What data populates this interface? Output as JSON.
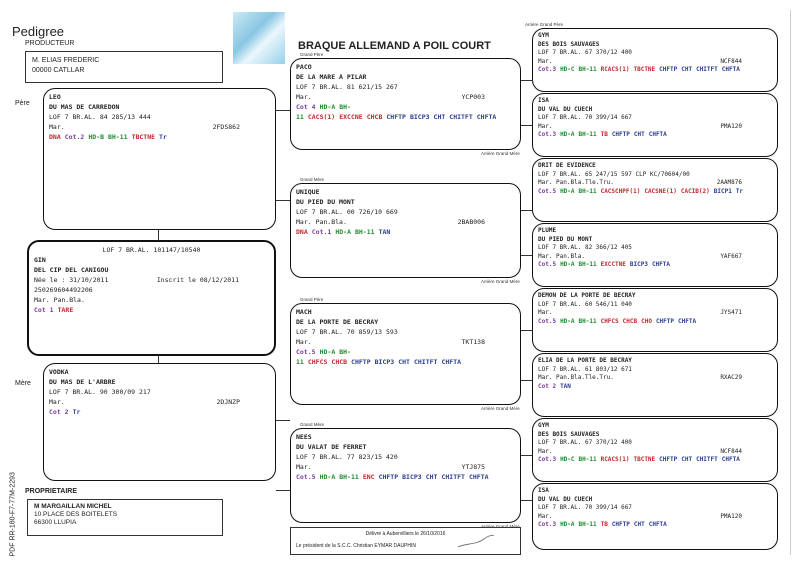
{
  "header": {
    "title": "Pedigree",
    "breed": "BRAQUE ALLEMAND A POIL COURT"
  },
  "breeder": {
    "label": "PRODUCTEUR",
    "name": "M. ELIAS FREDERIC",
    "city": "00000 CATLLAR"
  },
  "owner": {
    "label": "PROPRIETAIRE",
    "name": "M MARGAILLAN MICHEL",
    "address": "10 PLACE DES BOITELETS",
    "city": "66300 LLUPIA"
  },
  "side_code": "PDF   RR-180-F7-77M-2293",
  "labels": {
    "pere": "Père",
    "mere": "Mère",
    "grand_pere": "Grand Père",
    "grand_mere": "Grand Mère",
    "arriere_grand_pere": "Arrière Grand Père",
    "arriere_grand_mere": "Arrière Grand Mère"
  },
  "colors": {
    "purple": "#7a3d9a",
    "green": "#1f8a2e",
    "red": "#c0262b",
    "blue": "#2a3b8f"
  },
  "subject": {
    "lof": "LOF 7 BR.AL. 101147/10540",
    "name": "GIN",
    "affix": "DEL CIP DEL CANIGOU",
    "born": "Née le : 31/10/2011",
    "registered": "Inscrit le 08/12/2011",
    "chip": "250269604492206",
    "coat": "Mar. Pan.Bla.",
    "tags": [
      {
        "t": "Cot 1",
        "c": "purple"
      },
      {
        "t": "TARE",
        "c": "red"
      }
    ]
  },
  "dogs": [
    {
      "role": "pere",
      "name": "LEO",
      "affix": "DU MAS DE CARREDON",
      "lof": "LOF 7 BR.AL. 84 285/13 444",
      "coat": "Mar.",
      "id": "2FDS862",
      "tags": [
        {
          "t": "DNA",
          "c": "red"
        },
        {
          "t": "Cot.2",
          "c": "purple"
        },
        {
          "t": "HD-B",
          "c": "green"
        },
        {
          "t": "BH-11",
          "c": "green"
        },
        {
          "t": "TBCTNE",
          "c": "red"
        },
        {
          "t": "Tr",
          "c": "blue"
        }
      ]
    },
    {
      "role": "mere",
      "name": "VODKA",
      "affix": "DU MAS DE L'ARBRE",
      "lof": "LOF 7 BR.AL. 90 300/09 217",
      "coat": "Mar.",
      "id": "2DJNZP",
      "tags": [
        {
          "t": "Cot 2",
          "c": "purple"
        },
        {
          "t": "Tr",
          "c": "blue"
        }
      ]
    },
    {
      "role": "gp1",
      "name": "PACO",
      "affix": "DE LA MARE A PILAR",
      "lof": "LOF 7 BR.AL. 81 621/15 267",
      "coat": "Mar.",
      "id": "YCP003",
      "tags": [
        {
          "t": "Cot 4",
          "c": "purple"
        },
        {
          "t": "HD-A",
          "c": "green"
        },
        {
          "t": "BH-11",
          "c": "green"
        },
        {
          "t": "CACS(1)",
          "c": "red"
        },
        {
          "t": "EXCCNE",
          "c": "red"
        },
        {
          "t": "CHCB",
          "c": "red"
        },
        {
          "t": "CHFTP",
          "c": "blue"
        },
        {
          "t": "BICP3",
          "c": "blue"
        },
        {
          "t": "CHT",
          "c": "blue"
        },
        {
          "t": "CHITFT",
          "c": "blue"
        },
        {
          "t": "CHFTA",
          "c": "blue"
        }
      ]
    },
    {
      "role": "gm1",
      "name": "UNIQUE",
      "affix": "DU PIED DU MONT",
      "lof": "LOF 7 BR.AL. 00 726/10 669",
      "coat": "Mar. Pan.Bla.",
      "id": "2BAB006",
      "tags": [
        {
          "t": "DNA",
          "c": "red"
        },
        {
          "t": "Cot.1",
          "c": "purple"
        },
        {
          "t": "HD-A",
          "c": "green"
        },
        {
          "t": "BH-11",
          "c": "green"
        },
        {
          "t": "TAN",
          "c": "blue"
        }
      ]
    },
    {
      "role": "gp2",
      "name": "MACH",
      "affix": "DE LA PORTE DE BECRAY",
      "lof": "LOF 7 BR.AL. 70 859/13 593",
      "coat": "Mar.",
      "id": "TKT138",
      "tags": [
        {
          "t": "Cot.5",
          "c": "purple"
        },
        {
          "t": "HD-A",
          "c": "green"
        },
        {
          "t": "BH-11",
          "c": "green"
        },
        {
          "t": "CHFCS",
          "c": "red"
        },
        {
          "t": "CHCB",
          "c": "red"
        },
        {
          "t": "CHFTP",
          "c": "blue"
        },
        {
          "t": "BICP3",
          "c": "blue"
        },
        {
          "t": "CHT",
          "c": "blue"
        },
        {
          "t": "CHITFT",
          "c": "blue"
        },
        {
          "t": "CHFTA",
          "c": "blue"
        }
      ]
    },
    {
      "role": "gm2",
      "name": "NEES",
      "affix": "DU VALAT DE FERRET",
      "lof": "LOF 7 BR.AL. 77 823/15 420",
      "coat": "Mar.",
      "id": "YTJ875",
      "tags": [
        {
          "t": "Cot.5",
          "c": "purple"
        },
        {
          "t": "HD-A",
          "c": "green"
        },
        {
          "t": "BH-11",
          "c": "green"
        },
        {
          "t": "ENC",
          "c": "red"
        },
        {
          "t": "CHFTP",
          "c": "blue"
        },
        {
          "t": "BICP3",
          "c": "blue"
        },
        {
          "t": "CHT",
          "c": "blue"
        },
        {
          "t": "CHITFT",
          "c": "blue"
        },
        {
          "t": "CHFTA",
          "c": "blue"
        }
      ]
    },
    {
      "role": "agp1",
      "name": "GYM",
      "affix": "DES BOIS SAUVAGES",
      "lof": "LOF 7 BR.AL. 67 370/12 400",
      "coat": "Mar.",
      "id": "NCF844",
      "tags": [
        {
          "t": "Cot.3",
          "c": "purple"
        },
        {
          "t": "HD-C",
          "c": "green"
        },
        {
          "t": "BH-11",
          "c": "green"
        },
        {
          "t": "RCACS(1)",
          "c": "red"
        },
        {
          "t": "TBCTNE",
          "c": "red"
        },
        {
          "t": "CHFTP",
          "c": "blue"
        },
        {
          "t": "CHT",
          "c": "blue"
        },
        {
          "t": "CHITFT",
          "c": "blue"
        },
        {
          "t": "CHFTA",
          "c": "blue"
        }
      ]
    },
    {
      "role": "agm1",
      "name": "ISA",
      "affix": "DU VAL DU CUECH",
      "lof": "LOF 7 BR.AL. 70 399/14 667",
      "coat": "Mar.",
      "id": "PMA120",
      "tags": [
        {
          "t": "Cot.3",
          "c": "purple"
        },
        {
          "t": "HD-A",
          "c": "green"
        },
        {
          "t": "BH-11",
          "c": "green"
        },
        {
          "t": "TB",
          "c": "red"
        },
        {
          "t": "CHFTP",
          "c": "blue"
        },
        {
          "t": "CHT",
          "c": "blue"
        },
        {
          "t": "CHFTA",
          "c": "blue"
        }
      ]
    },
    {
      "role": "agp2",
      "name": "DRIT DE EVIDENCE",
      "affix": "",
      "lof": "LOF 7 BR.AL. 65 247/15 597 CLP KC/70604/00",
      "coat": "Mar. Pan.Bla.Tle.Tru.",
      "id": "2AAM876",
      "tags": [
        {
          "t": "Cot.5",
          "c": "purple"
        },
        {
          "t": "HD-A",
          "c": "green"
        },
        {
          "t": "BH-11",
          "c": "green"
        },
        {
          "t": "CACSCHPF(1)",
          "c": "red"
        },
        {
          "t": "CACSNE(1)",
          "c": "red"
        },
        {
          "t": "CACIB(2)",
          "c": "red"
        },
        {
          "t": "BICP1",
          "c": "blue"
        },
        {
          "t": "Tr",
          "c": "blue"
        }
      ]
    },
    {
      "role": "agm2",
      "name": "PLUME",
      "affix": "DU PIED DU MONT",
      "lof": "LOF 7 BR.AL. 82 366/12 405",
      "coat": "Mar. Pan.Bla.",
      "id": "YAF667",
      "tags": [
        {
          "t": "Cot.5",
          "c": "purple"
        },
        {
          "t": "HD-A",
          "c": "green"
        },
        {
          "t": "BH-11",
          "c": "green"
        },
        {
          "t": "EXCCTNE",
          "c": "red"
        },
        {
          "t": "BICP3",
          "c": "blue"
        },
        {
          "t": "CHFTA",
          "c": "blue"
        }
      ]
    },
    {
      "role": "agp3",
      "name": "DEMON DE LA PORTE DE BECRAY",
      "affix": "",
      "lof": "LOF 7 BR.AL. 60 546/11 040",
      "coat": "Mar.",
      "id": "JYS471",
      "tags": [
        {
          "t": "Cot.5",
          "c": "purple"
        },
        {
          "t": "HD-A",
          "c": "green"
        },
        {
          "t": "BH-11",
          "c": "green"
        },
        {
          "t": "CHFCS",
          "c": "red"
        },
        {
          "t": "CHCB",
          "c": "red"
        },
        {
          "t": "CHO",
          "c": "red"
        },
        {
          "t": "CHFTP",
          "c": "blue"
        },
        {
          "t": "CHFTA",
          "c": "blue"
        }
      ]
    },
    {
      "role": "agm3",
      "name": "ELIA DE LA PORTE DE BECRAY",
      "affix": "",
      "lof": "LOF 7 BR.AL. 61 803/12 671",
      "coat": "Mar. Pan.Bla.Tle.Tru.",
      "id": "RXAC29",
      "tags": [
        {
          "t": "Cot 2",
          "c": "purple"
        },
        {
          "t": "TAN",
          "c": "blue"
        }
      ]
    },
    {
      "role": "agp4",
      "name": "GYM",
      "affix": "DES BOIS SAUVAGES",
      "lof": "LOF 7 BR.AL. 67 370/12 400",
      "coat": "Mar.",
      "id": "NCF844",
      "tags": [
        {
          "t": "Cot.3",
          "c": "purple"
        },
        {
          "t": "HD-C",
          "c": "green"
        },
        {
          "t": "BH-11",
          "c": "green"
        },
        {
          "t": "RCACS(1)",
          "c": "red"
        },
        {
          "t": "TBCTNE",
          "c": "red"
        },
        {
          "t": "CHFTP",
          "c": "blue"
        },
        {
          "t": "CHT",
          "c": "blue"
        },
        {
          "t": "CHITFT",
          "c": "blue"
        },
        {
          "t": "CHFTA",
          "c": "blue"
        }
      ]
    },
    {
      "role": "agm4",
      "name": "ISA",
      "affix": "DU VAL DU CUECH",
      "lof": "LOF 7 BR.AL. 70 399/14 667",
      "coat": "Mar.",
      "id": "PMA120",
      "tags": [
        {
          "t": "Cot.3",
          "c": "purple"
        },
        {
          "t": "HD-A",
          "c": "green"
        },
        {
          "t": "BH-11",
          "c": "green"
        },
        {
          "t": "TB",
          "c": "red"
        },
        {
          "t": "CHFTP",
          "c": "blue"
        },
        {
          "t": "CHT",
          "c": "blue"
        },
        {
          "t": "CHFTA",
          "c": "blue"
        }
      ]
    }
  ],
  "delivery": {
    "line1": "Délivré à Aubervilliers le 26/10/2016",
    "line2": "Le président de la S.C.C. Christian EYMAR DAUPHIN"
  }
}
